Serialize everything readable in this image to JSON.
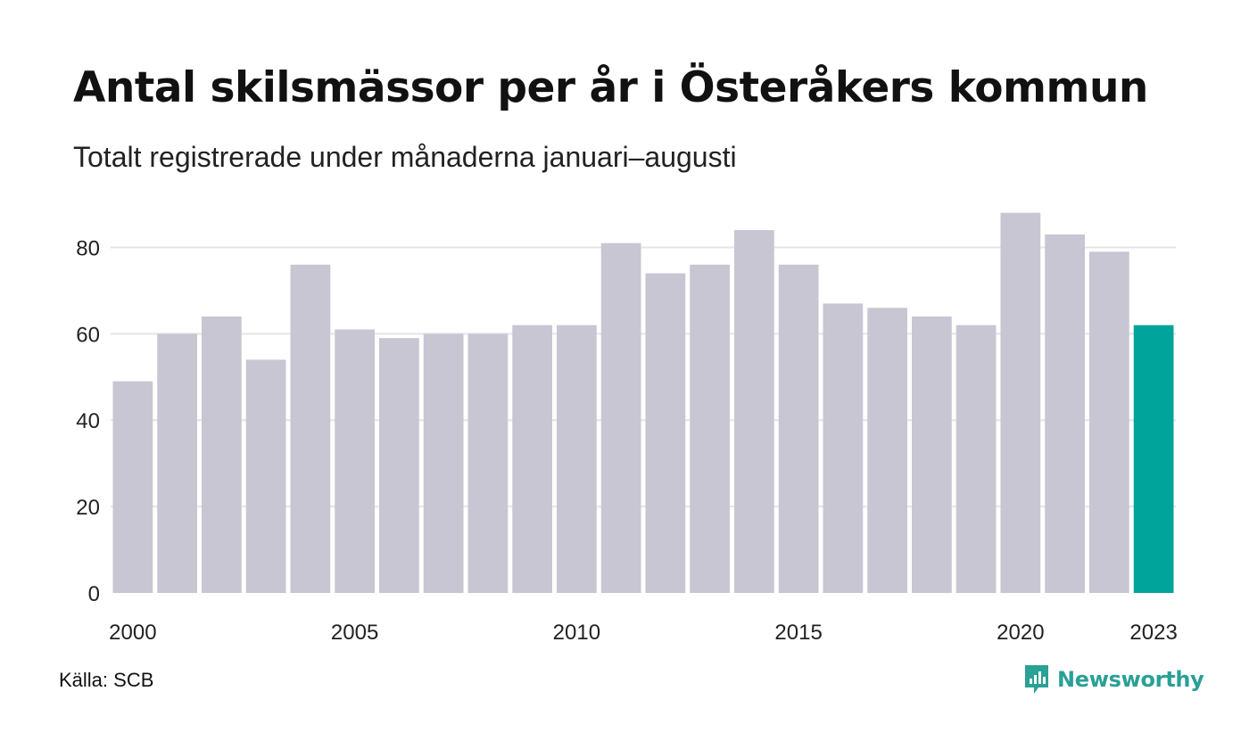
{
  "title": "Antal skilsmässor per år i Österåkers kommun",
  "subtitle": "Totalt registrerade under månaderna januari–augusti",
  "source": "Källa: SCB",
  "brand": {
    "name": "Newsworthy",
    "icon": "newsworthy-logo-icon"
  },
  "colors": {
    "bar": "#c8c6d2",
    "highlight": "#00a49a",
    "grid": "#e4e4e8",
    "brand": "#2aa096"
  },
  "chart_data": {
    "type": "bar",
    "categories": [
      "2000",
      "2001",
      "2002",
      "2003",
      "2004",
      "2005",
      "2006",
      "2007",
      "2008",
      "2009",
      "2010",
      "2011",
      "2012",
      "2013",
      "2014",
      "2015",
      "2016",
      "2017",
      "2018",
      "2019",
      "2020",
      "2021",
      "2022",
      "2023"
    ],
    "values": [
      49,
      60,
      64,
      54,
      76,
      61,
      59,
      60,
      60,
      62,
      62,
      81,
      74,
      76,
      84,
      76,
      67,
      66,
      64,
      62,
      88,
      83,
      79,
      62
    ],
    "highlight": "2023",
    "x_tick_labels": [
      "2000",
      "2005",
      "2010",
      "2015",
      "2020",
      "2023"
    ],
    "y_ticks": [
      0,
      20,
      40,
      60,
      80
    ],
    "ylim": [
      0,
      90
    ],
    "grid": true,
    "xlabel": "",
    "ylabel": ""
  }
}
